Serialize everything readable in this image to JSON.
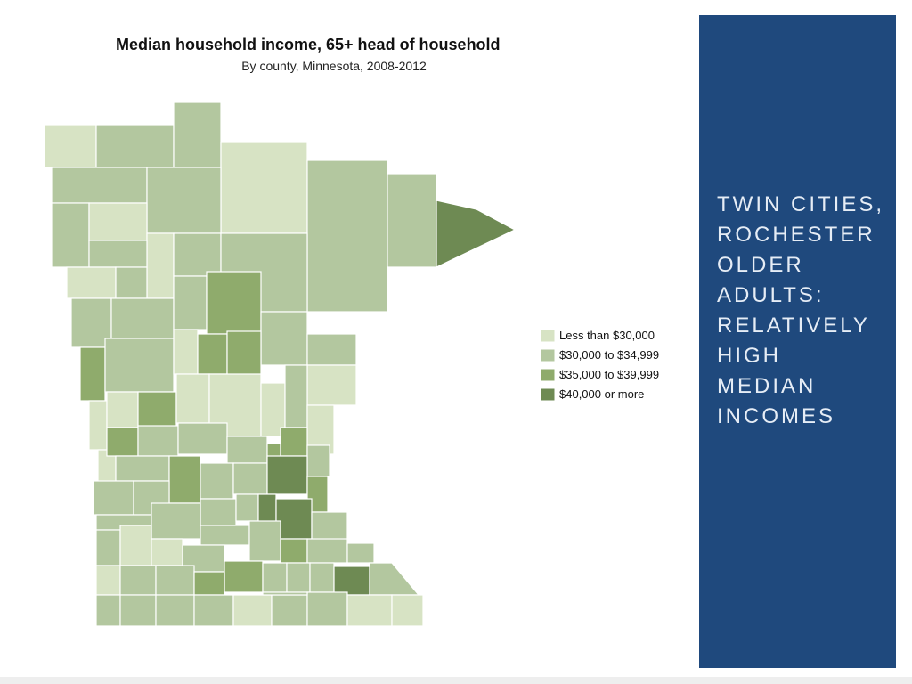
{
  "map": {
    "title": "Median household income, 65+ head of household",
    "subtitle": "By county, Minnesota, 2008-2012",
    "legend": [
      {
        "label": "Less than $30,000",
        "color": "#d7e3c4"
      },
      {
        "label": "$30,000 to $34,999",
        "color": "#b3c79f"
      },
      {
        "label": "$35,000 to $39,999",
        "color": "#8fab6c"
      },
      {
        "label": "$40,000 or more",
        "color": "#6e8a53"
      }
    ]
  },
  "sidebar": {
    "heading_lines": [
      "TWIN CITIES,",
      "ROCHESTER",
      "OLDER",
      "ADULTS:",
      "RELATIVELY",
      "HIGH",
      "MEDIAN",
      "INCOMES"
    ]
  }
}
